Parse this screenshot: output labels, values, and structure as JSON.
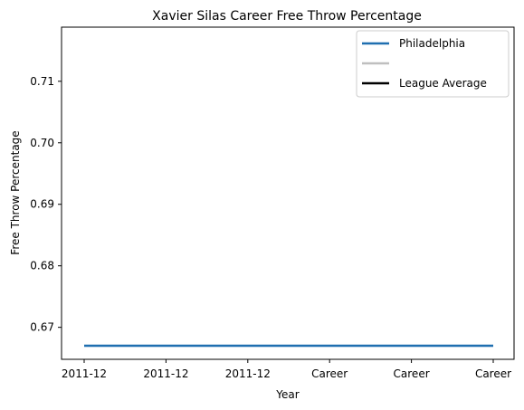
{
  "chart_data": {
    "type": "line",
    "title": "Xavier Silas Career Free Throw Percentage",
    "xlabel": "Year",
    "ylabel": "Free Throw Percentage",
    "categories": [
      "2011-12",
      "2011-12",
      "2011-12",
      "Career",
      "Career",
      "Career"
    ],
    "series": [
      {
        "name": "Philadelphia",
        "color": "#1f6fb0",
        "values": [
          0.667,
          0.667,
          0.667,
          0.667,
          0.667,
          0.667
        ]
      }
    ],
    "legend": {
      "placement": "top-right",
      "entries": [
        {
          "label": "Philadelphia",
          "color": "#1f6fb0"
        },
        {
          "label": "",
          "color": "#bfbfbf"
        },
        {
          "label": "League Average",
          "color": "#000000"
        }
      ]
    },
    "ylim": [
      0.6648,
      0.7188
    ],
    "yticks": [
      0.67,
      0.68,
      0.69,
      0.7,
      0.71
    ],
    "ytick_labels": [
      "0.67",
      "0.68",
      "0.69",
      "0.70",
      "0.71"
    ],
    "grid": false
  }
}
